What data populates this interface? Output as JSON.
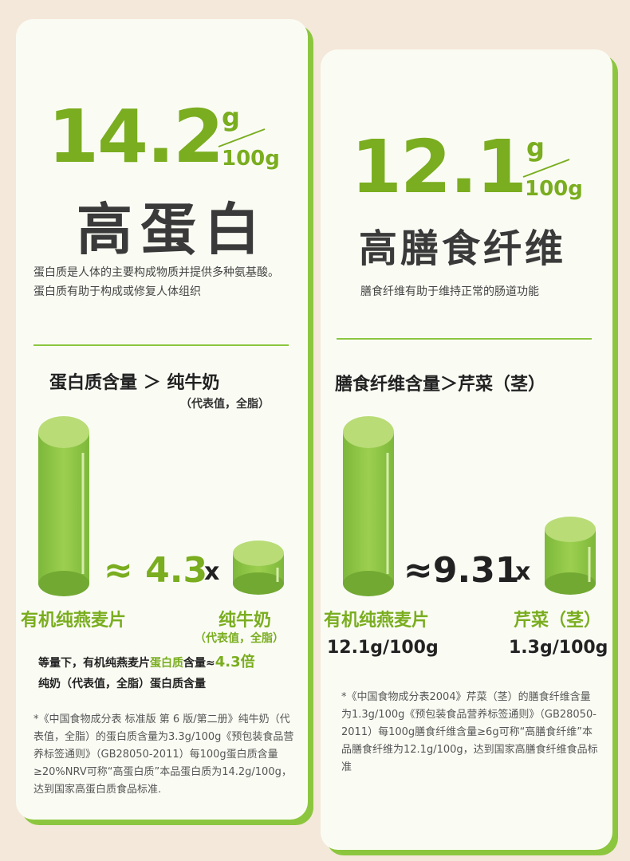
{
  "cards": [
    {
      "big_number": "14.2",
      "unit_top": "g",
      "unit_bottom": "100g",
      "headline": "高蛋白",
      "description": "蛋白质是人体的主要构成物质并提供多种氨基酸。蛋白质有助于构成或修复人体组织",
      "compare_title": "蛋白质含量 ＞ 纯牛奶",
      "compare_subtitle": "（代表值，全脂）",
      "ratio": "≈ 4.3",
      "ratio_unit": "x",
      "left_label": "有机纯燕麦片",
      "right_label": "纯牛奶",
      "right_sublabel": "（代表值，全脂）",
      "summary": [
        "等量下，有机纯燕麦片",
        "蛋白质",
        "含量≈",
        "4.3倍",
        "纯奶（代表值，全脂）蛋白质含量"
      ],
      "footnote": "*《中国食物成分表 标准版 第 6 版/第二册》纯牛奶（代表值，全脂）的蛋白质含量为3.3g/100g《预包装食品营养标签通则》（GB28050-2011）每100g蛋白质含量≥20%NRV可称“高蛋白质”本品蛋白质为14.2g/100g，达到国家高蛋白质食品标准."
    },
    {
      "big_number": "12.1",
      "unit_top": "g",
      "unit_bottom": "100g",
      "headline": "高膳食纤维",
      "description": "膳食纤维有助于维持正常的肠道功能",
      "compare_title": "膳食纤维含量＞芹菜（茎）",
      "ratio": "≈9.31",
      "ratio_unit": "x",
      "left_label": "有机纯燕麦片",
      "left_value": "12.1g/100g",
      "right_label": "芹菜（茎）",
      "right_value": "1.3g/100g",
      "footnote": "*《中国食物成分表2004》芹菜（茎）的膳食纤维含量为1.3g/100g《预包装食品营养标签通则》（GB28050-2011）每100g膳食纤维含量≥6g可称“高膳食纤维”本品膳食纤维为12.1g/100g，达到国家高膳食纤维食品标准"
    }
  ]
}
